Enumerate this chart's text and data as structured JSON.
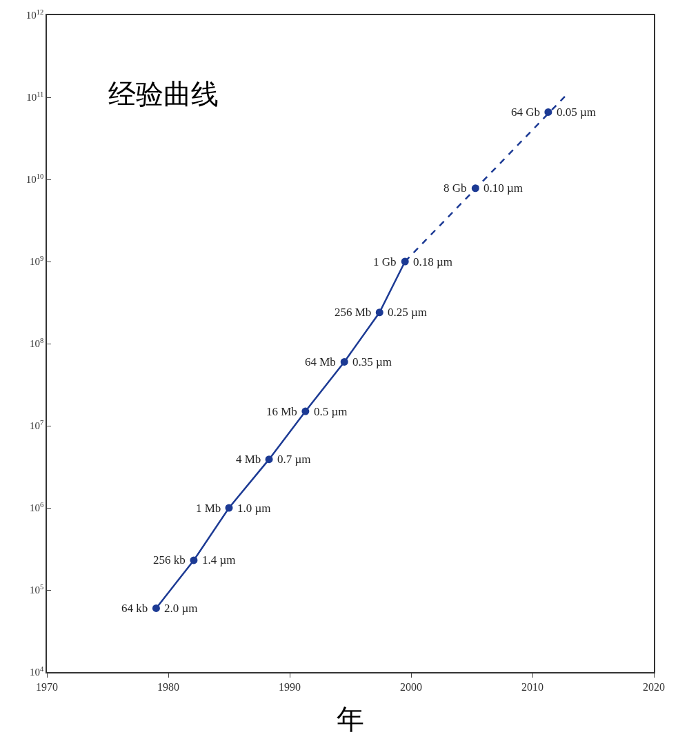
{
  "chart_data": {
    "type": "line",
    "title": "经验曲线",
    "xlabel": "年",
    "log": "y",
    "grid": false,
    "xlim": [
      1970,
      2020
    ],
    "xticks": [
      1970,
      1980,
      1990,
      2000,
      2010,
      2020
    ],
    "ylim": [
      10000,
      1000000000000
    ],
    "yticks": [
      {
        "value": 10000,
        "label": "10$^{4}$"
      },
      {
        "value": 100000,
        "label": "10$^{5}$"
      },
      {
        "value": 1000000,
        "label": "10$^{6}$"
      },
      {
        "value": 10000000,
        "label": "10$^{7}$"
      },
      {
        "value": 100000000,
        "label": "10$^{8}$"
      },
      {
        "value": 1000000000,
        "label": "10$^{9}$"
      },
      {
        "value": 10000000000,
        "label": "10$^{10}$"
      },
      {
        "value": 100000000000,
        "label": "10$^{11}$"
      },
      {
        "value": 1000000000000,
        "label": "10$^{12}$"
      }
    ],
    "series": [
      {
        "color": "#1c3a94",
        "line_style": "solid",
        "marker": "circle",
        "x": [
          1979,
          1982.1,
          1985,
          1988.3,
          1991.3,
          1994.5,
          1997.4,
          1999.5
        ],
        "values": [
          60000,
          230000,
          1000000,
          3900000,
          15000000,
          60000000,
          240000000,
          1000000000
        ]
      },
      {
        "color": "#1c3a94",
        "line_style": "dashed",
        "marker": "none",
        "x": [
          1999.5,
          2013
        ],
        "values": [
          1000000000,
          115000000000
        ]
      },
      {
        "type": "scatter",
        "color": "#1c3a94",
        "marker": "circle",
        "x": [
          2005.3,
          2011.3
        ],
        "values": [
          7800000000,
          66000000000
        ]
      }
    ],
    "annotations": [
      {
        "text": "64 kb",
        "x": 1979,
        "y": 60000
      },
      {
        "text": "2.0 µm",
        "x": 1979,
        "y": 60000
      },
      {
        "text": "256 kb",
        "x": 1982.1,
        "y": 230000
      },
      {
        "text": "1.4 µm",
        "x": 1982.1,
        "y": 230000
      },
      {
        "text": "1 Mb",
        "x": 1985,
        "y": 1000000
      },
      {
        "text": "1.0 µm",
        "x": 1985,
        "y": 1000000
      },
      {
        "text": "4 Mb",
        "x": 1988.3,
        "y": 3900000
      },
      {
        "text": "0.7 µm",
        "x": 1988.3,
        "y": 3900000
      },
      {
        "text": "16 Mb",
        "x": 1991.3,
        "y": 15000000
      },
      {
        "text": "0.5 µm",
        "x": 1991.3,
        "y": 15000000
      },
      {
        "text": "64 Mb",
        "x": 1994.5,
        "y": 60000000
      },
      {
        "text": "0.35 µm",
        "x": 1994.5,
        "y": 60000000
      },
      {
        "text": "256 Mb",
        "x": 1997.4,
        "y": 240000000
      },
      {
        "text": "0.25 µm",
        "x": 1997.4,
        "y": 240000000
      },
      {
        "text": "1 Gb",
        "x": 1999.5,
        "y": 1000000000
      },
      {
        "text": "0.18 µm",
        "x": 1999.5,
        "y": 1000000000
      },
      {
        "text": "8 Gb",
        "x": 2005.3,
        "y": 7800000000
      },
      {
        "text": "0.10 µm",
        "x": 2005.3,
        "y": 7800000000
      },
      {
        "text": "64 Gb",
        "x": 2011.3,
        "y": 66000000000
      },
      {
        "text": "0.05 µm",
        "x": 2011.3,
        "y": 66000000000
      }
    ]
  }
}
